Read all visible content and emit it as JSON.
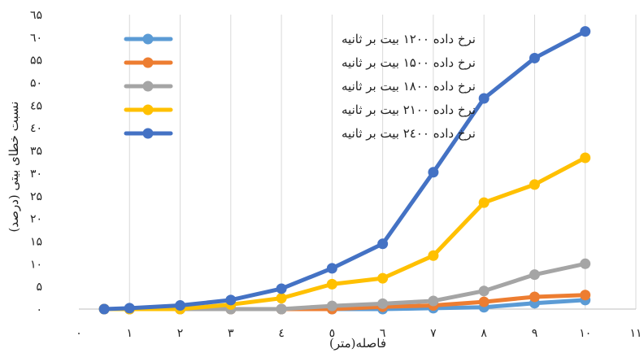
{
  "chart_data": {
    "type": "line",
    "xlabel": "فاصله(متر)",
    "ylabel": "نسبت خطای بیتی (درصد)",
    "x_ticks": [
      "۰",
      "۱",
      "۲",
      "۳",
      "٤",
      "٥",
      "٦",
      "۷",
      "۸",
      "۹",
      "۱۰",
      "۱۱"
    ],
    "y_ticks": [
      "۰",
      "۵",
      "۱۰",
      "۱۵",
      "۲۰",
      "۲۵",
      "۳۰",
      "۳۵",
      "٤۰",
      "٤۵",
      "۵۰",
      "۵۵",
      "٦۰",
      "٦۵"
    ],
    "xlim": [
      0,
      11
    ],
    "ylim": [
      0,
      65
    ],
    "grid": "vertical",
    "legend_position": "top-left",
    "x": [
      0.5,
      1,
      2,
      3,
      4,
      5,
      6,
      7,
      8,
      9,
      10
    ],
    "series": [
      {
        "name": "نرخ داده ۱۲۰۰ بیت بر ثانیه",
        "color": "#5b9bd5",
        "values": [
          0,
          0,
          0,
          0,
          0,
          0,
          0,
          0.2,
          0.4,
          1.3,
          2
        ]
      },
      {
        "name": "نرخ داده ۱۵۰۰ بیت بر ثانیه",
        "color": "#ed7d31",
        "values": [
          0,
          0,
          0,
          0,
          0,
          0,
          0.5,
          0.8,
          1.6,
          2.7,
          3.1
        ]
      },
      {
        "name": "نرخ داده ۱۸۰۰ بیت بر ثانیه",
        "color": "#a5a5a5",
        "values": [
          0,
          0,
          0,
          0,
          0,
          0.7,
          1.2,
          1.8,
          4,
          7.6,
          10
        ]
      },
      {
        "name": "نرخ داده ۲۱۰۰ بیت بر ثانیه",
        "color": "#ffc000",
        "values": [
          0,
          0,
          0,
          1,
          2.4,
          5.5,
          6.8,
          11.8,
          23.5,
          27.5,
          33.4
        ]
      },
      {
        "name": "نرخ داده ۲٤۰۰ بیت بر ثانیه",
        "color": "#4472c4",
        "values": [
          0,
          0.2,
          0.8,
          2,
          4.5,
          9,
          14.4,
          30.2,
          46.5,
          55.4,
          61.3
        ]
      }
    ]
  }
}
